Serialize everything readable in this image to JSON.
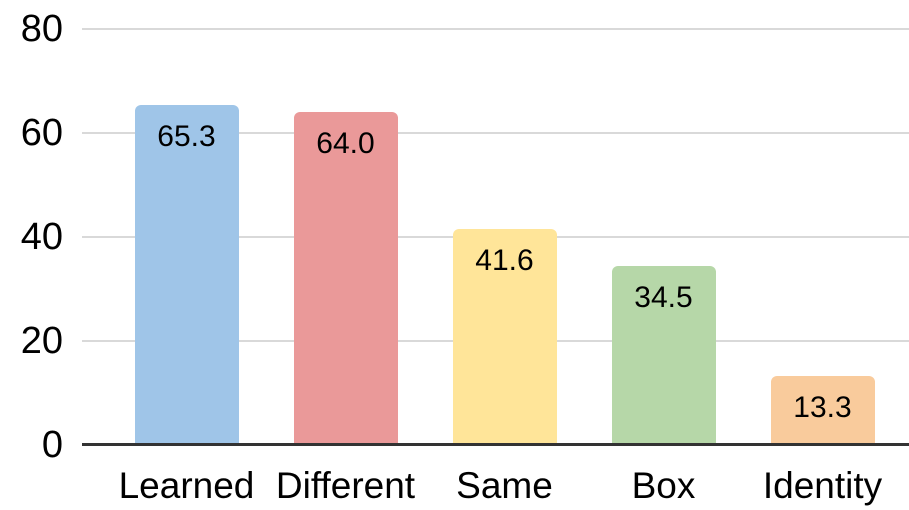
{
  "chart_data": {
    "type": "bar",
    "title": "",
    "xlabel": "",
    "ylabel": "",
    "categories": [
      "Learned",
      "Different",
      "Same",
      "Box",
      "Identity"
    ],
    "values": [
      65.3,
      64.0,
      41.6,
      34.5,
      13.3
    ],
    "value_labels": [
      "65.3",
      "64.0",
      "41.6",
      "34.5",
      "13.3"
    ],
    "bar_colors": [
      "#9fc5e8",
      "#ea9999",
      "#ffe599",
      "#b6d7a8",
      "#f9cb9c"
    ],
    "ylim": [
      0,
      80
    ],
    "yticks": [
      0,
      20,
      40,
      60,
      80
    ],
    "ytick_labels": [
      "0",
      "20",
      "40",
      "60",
      "80"
    ],
    "grid": true,
    "legend": "none",
    "gridline_color": "#d9d9d9",
    "axis_line_color": "#333333",
    "text_color": "#000000",
    "background_color": "#ffffff"
  }
}
